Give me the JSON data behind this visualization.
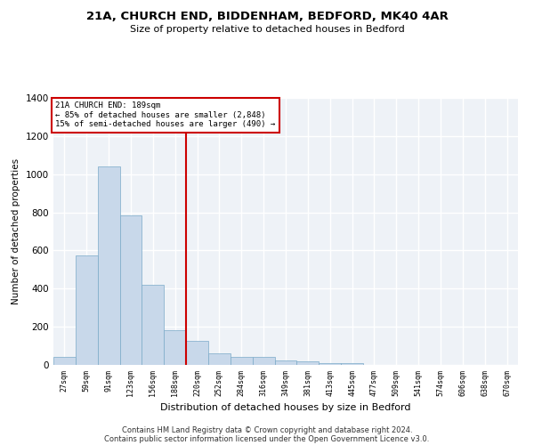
{
  "title1": "21A, CHURCH END, BIDDENHAM, BEDFORD, MK40 4AR",
  "title2": "Size of property relative to detached houses in Bedford",
  "xlabel": "Distribution of detached houses by size in Bedford",
  "ylabel": "Number of detached properties",
  "categories": [
    "27sqm",
    "59sqm",
    "91sqm",
    "123sqm",
    "156sqm",
    "188sqm",
    "220sqm",
    "252sqm",
    "284sqm",
    "316sqm",
    "349sqm",
    "381sqm",
    "413sqm",
    "445sqm",
    "477sqm",
    "509sqm",
    "541sqm",
    "574sqm",
    "606sqm",
    "638sqm",
    "670sqm"
  ],
  "values": [
    40,
    575,
    1040,
    785,
    420,
    180,
    125,
    60,
    40,
    40,
    22,
    20,
    10,
    8,
    0,
    0,
    0,
    0,
    0,
    0,
    0
  ],
  "bar_color": "#c8d8ea",
  "bar_edgecolor": "#7aaac8",
  "property_line_x": 5.5,
  "annotation_line1": "21A CHURCH END: 189sqm",
  "annotation_line2": "← 85% of detached houses are smaller (2,848)",
  "annotation_line3": "15% of semi-detached houses are larger (490) →",
  "vline_color": "#cc0000",
  "annotation_box_edgecolor": "#cc0000",
  "background_color": "#eef2f7",
  "grid_color": "#ffffff",
  "ylim": [
    0,
    1400
  ],
  "yticks": [
    0,
    200,
    400,
    600,
    800,
    1000,
    1200,
    1400
  ],
  "footer1": "Contains HM Land Registry data © Crown copyright and database right 2024.",
  "footer2": "Contains public sector information licensed under the Open Government Licence v3.0."
}
